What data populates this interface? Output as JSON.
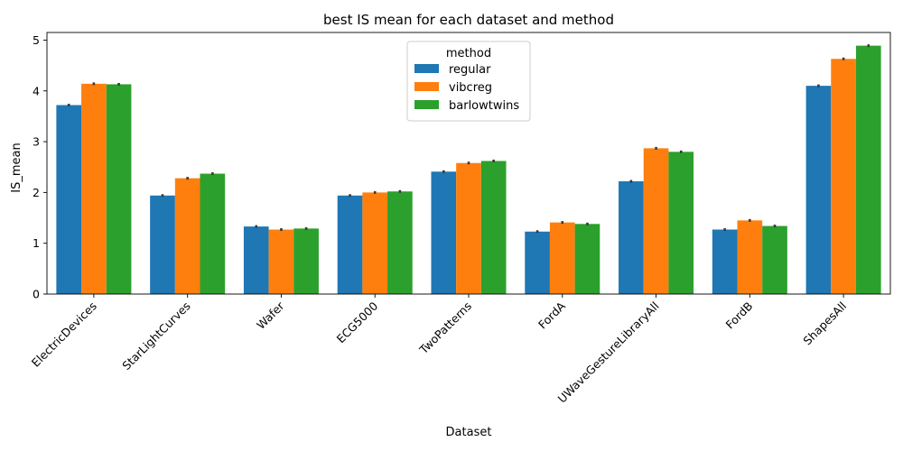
{
  "chart_data": {
    "type": "bar",
    "title": "best IS mean for each dataset and method",
    "xlabel": "Dataset",
    "ylabel": "IS_mean",
    "ylim": [
      0,
      5.15
    ],
    "yticks": [
      "0",
      "1",
      "2",
      "3",
      "4",
      "5"
    ],
    "categories": [
      "ElectricDevices",
      "StarLightCurves",
      "Wafer",
      "ECG5000",
      "TwoPatterns",
      "FordA",
      "UWaveGestureLibraryAll",
      "FordB",
      "ShapesAll"
    ],
    "legend": {
      "title": "method",
      "position": "top-center"
    },
    "series": [
      {
        "name": "regular",
        "color": "#1f77b4",
        "values": [
          3.72,
          1.94,
          1.33,
          1.94,
          2.41,
          1.23,
          2.22,
          1.27,
          4.1
        ]
      },
      {
        "name": "vibcreg",
        "color": "#ff7f0e",
        "values": [
          4.14,
          2.28,
          1.27,
          2.0,
          2.58,
          1.41,
          2.87,
          1.45,
          4.63
        ]
      },
      {
        "name": "barlowtwins",
        "color": "#2ca02c",
        "values": [
          4.13,
          2.37,
          1.29,
          2.02,
          2.62,
          1.38,
          2.8,
          1.34,
          4.89
        ]
      }
    ],
    "grid": false
  }
}
